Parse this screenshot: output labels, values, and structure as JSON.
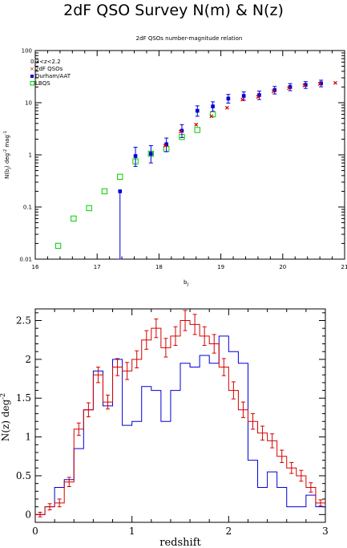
{
  "page_title": "2dF QSO Survey N(m) & N(z)",
  "chart_data": [
    {
      "type": "scatter",
      "title": "2dF QSOs number-magnitude relation",
      "xlabel": "b_J",
      "ylabel": "N(b_J) deg^-2 mag^-1",
      "xlim": [
        16,
        21
      ],
      "ylim": [
        0.01,
        100
      ],
      "ylog": true,
      "x_ticks": [
        "16",
        "17",
        "18",
        "19",
        "20",
        "21"
      ],
      "y_ticks": [
        "0.01",
        "0.1",
        "1",
        "10",
        "100"
      ],
      "legend_title": "0.3<z<2.2",
      "legend_position": "top-left",
      "series": [
        {
          "name": "2dF QSOs",
          "color": "#d40000",
          "marker": "cross",
          "x": [
            18.1,
            18.35,
            18.6,
            18.85,
            19.1,
            19.35,
            19.6,
            19.85,
            20.1,
            20.35,
            20.6,
            20.85
          ],
          "y": [
            1.5,
            2.8,
            3.8,
            5.5,
            8.0,
            11.5,
            13.0,
            16.5,
            19.0,
            21.5,
            23.0,
            24.0
          ]
        },
        {
          "name": "Durham/AAT",
          "color": "#0000d8",
          "marker": "square-filled",
          "x": [
            17.37,
            17.62,
            17.87,
            18.12,
            18.37,
            18.62,
            18.87,
            19.12,
            19.37,
            19.62,
            19.87,
            20.12,
            20.37,
            20.62
          ],
          "y": [
            0.2,
            0.95,
            1.05,
            1.6,
            2.9,
            7.0,
            8.5,
            12.0,
            13.5,
            14.0,
            17.5,
            20.0,
            22.0,
            23.5
          ],
          "yerr_low": [
            0.19,
            0.35,
            0.35,
            0.45,
            0.75,
            1.5,
            1.7,
            2.2,
            2.4,
            2.5,
            2.8,
            3.0,
            3.2,
            3.3
          ],
          "yerr_high": [
            0.0,
            0.45,
            0.45,
            0.5,
            0.9,
            1.7,
            1.9,
            2.4,
            2.6,
            2.7,
            3.0,
            3.2,
            3.4,
            3.5
          ]
        },
        {
          "name": "LBQS",
          "color": "#00cc00",
          "marker": "square-open",
          "x": [
            16.37,
            16.62,
            16.87,
            17.12,
            17.37,
            17.62,
            17.87,
            18.12,
            18.37,
            18.62,
            18.87
          ],
          "y": [
            0.018,
            0.06,
            0.095,
            0.2,
            0.38,
            0.75,
            1.05,
            1.3,
            2.2,
            3.0,
            6.0
          ]
        }
      ]
    },
    {
      "type": "line",
      "title": "",
      "xlabel": "redshift",
      "ylabel": "N(z) deg^-2",
      "xlim": [
        0,
        3
      ],
      "ylim": [
        -0.1,
        2.65
      ],
      "x_ticks": [
        "0",
        "1",
        "2",
        "3"
      ],
      "y_ticks": [
        "0",
        "0.5",
        "1",
        "1.5",
        "2",
        "2.5"
      ],
      "bin_width": 0.1,
      "series": [
        {
          "name": "",
          "color": "#0000d8",
          "style": "histogram",
          "x": [
            0.0,
            0.1,
            0.2,
            0.3,
            0.4,
            0.5,
            0.6,
            0.7,
            0.8,
            0.9,
            1.0,
            1.1,
            1.2,
            1.3,
            1.4,
            1.5,
            1.6,
            1.7,
            1.8,
            1.9,
            2.0,
            2.1,
            2.2,
            2.3,
            2.4,
            2.5,
            2.6,
            2.7,
            2.8,
            2.9
          ],
          "y": [
            0.0,
            0.1,
            0.35,
            0.45,
            0.85,
            1.35,
            1.85,
            1.4,
            2.0,
            1.15,
            1.2,
            1.65,
            1.6,
            1.2,
            1.6,
            1.95,
            1.9,
            2.05,
            1.95,
            2.3,
            2.1,
            1.95,
            0.7,
            0.35,
            0.55,
            0.35,
            0.1,
            0.1,
            0.25,
            0.1
          ]
        },
        {
          "name": "",
          "color": "#d40000",
          "style": "histogram-errorbars",
          "x": [
            0.0,
            0.1,
            0.2,
            0.3,
            0.4,
            0.5,
            0.6,
            0.7,
            0.8,
            0.9,
            1.0,
            1.1,
            1.2,
            1.3,
            1.4,
            1.5,
            1.6,
            1.7,
            1.8,
            1.9,
            2.0,
            2.1,
            2.2,
            2.3,
            2.4,
            2.5,
            2.6,
            2.7,
            2.8,
            2.9
          ],
          "y": [
            0.0,
            0.1,
            0.15,
            0.42,
            1.1,
            1.35,
            1.8,
            1.45,
            1.9,
            1.85,
            2.0,
            2.25,
            2.4,
            2.15,
            2.3,
            2.5,
            2.45,
            2.3,
            2.2,
            1.9,
            1.6,
            1.35,
            1.2,
            1.05,
            0.95,
            0.75,
            0.6,
            0.5,
            0.35,
            0.15
          ],
          "yerr": [
            0.03,
            0.04,
            0.05,
            0.06,
            0.08,
            0.09,
            0.1,
            0.09,
            0.11,
            0.11,
            0.11,
            0.12,
            0.12,
            0.12,
            0.12,
            0.13,
            0.13,
            0.12,
            0.12,
            0.11,
            0.11,
            0.1,
            0.1,
            0.09,
            0.09,
            0.08,
            0.07,
            0.07,
            0.06,
            0.04
          ]
        }
      ]
    }
  ]
}
